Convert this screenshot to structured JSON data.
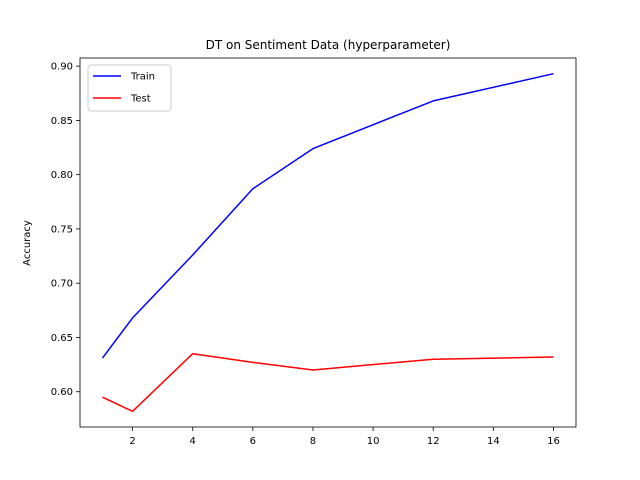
{
  "chart_data": {
    "type": "line",
    "title": "DT on Sentiment Data (hyperparameter)",
    "xlabel": "",
    "ylabel": "Accuracy",
    "x": [
      1,
      2,
      4,
      6,
      8,
      12,
      16
    ],
    "xlim": [
      0.25,
      16.75
    ],
    "ylim": [
      0.5675,
      0.9075
    ],
    "xticks": [
      2,
      4,
      6,
      8,
      10,
      12,
      14,
      16
    ],
    "yticks": [
      0.6,
      0.65,
      0.7,
      0.75,
      0.8,
      0.85,
      0.9
    ],
    "ytick_labels": [
      "0.60",
      "0.65",
      "0.70",
      "0.75",
      "0.80",
      "0.85",
      "0.90"
    ],
    "grid": false,
    "legend_position": "top-left",
    "series": [
      {
        "name": "Train",
        "color": "#0000ff",
        "values": [
          0.631,
          0.668,
          0.726,
          0.787,
          0.824,
          0.868,
          0.893
        ]
      },
      {
        "name": "Test",
        "color": "#ff0000",
        "values": [
          0.595,
          0.582,
          0.635,
          0.627,
          0.62,
          0.63,
          0.632
        ]
      }
    ]
  }
}
